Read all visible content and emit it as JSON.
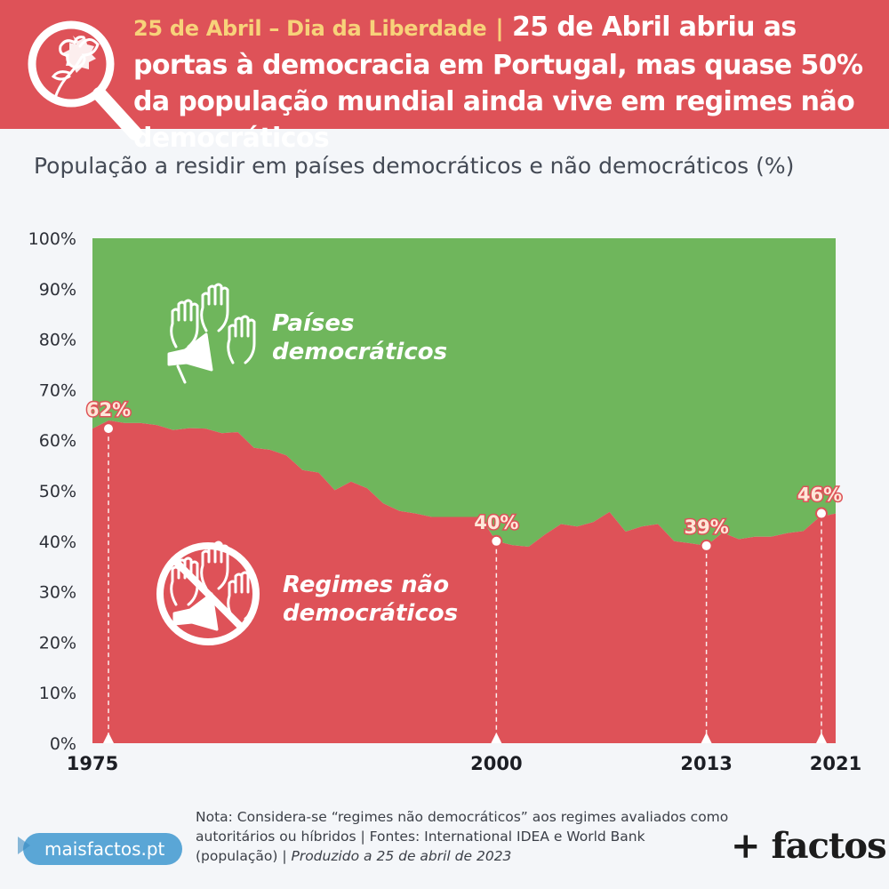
{
  "header": {
    "tagline": "25 de Abril – Dia da Liberdade",
    "separator": "|",
    "headline": "25 de Abril abriu as portas à democracia em Portugal, mas quase 50% da população mundial ainda vive em regimes não democráticos"
  },
  "footer": {
    "note": "Nota: Considera-se “regimes não democráticos” aos regimes avaliados como autoritários ou híbridos | Fontes: International IDEA e World Bank (população) |",
    "produced": "Produzido a 25 de abril de 2023",
    "site": "maisfactos.pt",
    "brand": "+ factos"
  },
  "colors": {
    "democratic": "#6fb65c",
    "non_democratic": "#de5258",
    "header": "#de5258",
    "highlight_label": "#fde7d8"
  },
  "icons": [
    "carnation-magnifier-icon",
    "raised-hands-megaphone-icon",
    "crossed-out-hands-megaphone-icon"
  ],
  "chart_data": {
    "type": "area",
    "title": "População a residir em países democráticos e não democráticos (%)",
    "xlabel": "",
    "ylabel": "",
    "x": [
      1975,
      1976,
      1977,
      1978,
      1979,
      1980,
      1981,
      1982,
      1983,
      1984,
      1985,
      1986,
      1987,
      1988,
      1989,
      1990,
      1991,
      1992,
      1993,
      1994,
      1995,
      1996,
      1997,
      1998,
      1999,
      2000,
      2001,
      2002,
      2003,
      2004,
      2005,
      2006,
      2007,
      2008,
      2009,
      2010,
      2011,
      2012,
      2013,
      2014,
      2015,
      2016,
      2017,
      2018,
      2019,
      2020,
      2021
    ],
    "series": [
      {
        "name": "Regimes não democráticos",
        "values": [
          62.3,
          63.9,
          63.4,
          63.4,
          63.0,
          62.0,
          62.4,
          62.3,
          61.4,
          61.6,
          58.5,
          58.1,
          57.0,
          54.1,
          53.6,
          50.1,
          51.8,
          50.5,
          47.5,
          46.0,
          45.5,
          44.8,
          44.8,
          44.8,
          44.8,
          40.0,
          39.2,
          38.9,
          41.3,
          43.4,
          42.9,
          43.8,
          45.8,
          41.9,
          42.9,
          43.4,
          40.0,
          39.6,
          39.1,
          41.7,
          40.4,
          40.9,
          40.9,
          41.6,
          42.0,
          44.8,
          45.5
        ]
      },
      {
        "name": "Países democráticos",
        "values": [
          37.7,
          36.1,
          36.6,
          36.6,
          37.0,
          38.0,
          37.6,
          37.7,
          38.6,
          38.4,
          41.5,
          41.9,
          43.0,
          45.9,
          46.4,
          49.9,
          48.2,
          49.5,
          52.5,
          54.0,
          54.5,
          55.2,
          55.2,
          55.2,
          55.2,
          60.0,
          60.8,
          61.1,
          58.7,
          56.6,
          57.1,
          56.2,
          54.2,
          58.1,
          57.1,
          56.6,
          60.0,
          60.4,
          60.9,
          58.3,
          59.6,
          59.1,
          59.1,
          58.4,
          58.0,
          55.2,
          54.5
        ]
      }
    ],
    "area_labels": {
      "democratic": "Países democráticos",
      "non_democratic": "Regimes não democráticos"
    },
    "y_ticks": [
      "0%",
      "10%",
      "20%",
      "30%",
      "40%",
      "50%",
      "60%",
      "70%",
      "80%",
      "90%",
      "100%"
    ],
    "x_ticks": [
      1975,
      2000,
      2013,
      2021
    ],
    "ylim": [
      0,
      100
    ],
    "xlim": [
      1975,
      2021
    ],
    "highlights": [
      {
        "year": 1975,
        "value": 62.3,
        "label": "62%"
      },
      {
        "year": 2000,
        "value": 40.0,
        "label": "40%"
      },
      {
        "year": 2013,
        "value": 39.1,
        "label": "39%"
      },
      {
        "year": 2021,
        "value": 45.5,
        "label": "46%"
      }
    ],
    "grid": false,
    "legend": "none"
  }
}
